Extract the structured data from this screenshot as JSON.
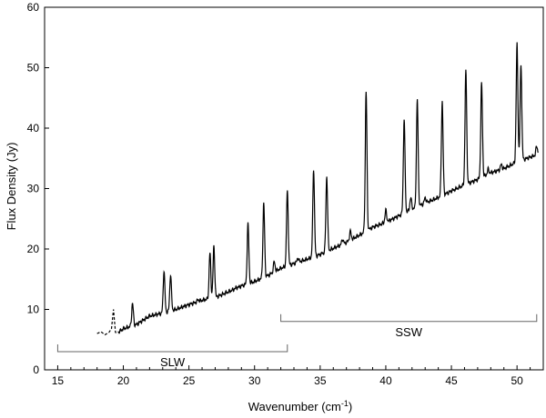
{
  "chart_data": {
    "type": "line",
    "xlabel": "Wavenumber",
    "xlabel_unit": "(cm",
    "xlabel_unit_sup": "-1",
    "xlabel_unit_close": ")",
    "ylabel": "Flux Density (Jy)",
    "xlim": [
      14,
      52
    ],
    "ylim": [
      0,
      60
    ],
    "x_ticks": [
      15,
      20,
      25,
      30,
      35,
      40,
      45,
      50
    ],
    "y_ticks": [
      0,
      10,
      20,
      30,
      40,
      50,
      60
    ],
    "grid": false,
    "legend": "none",
    "line_color": "#000000",
    "series": [
      {
        "style": "dashed",
        "points": [
          [
            18.0,
            6.0
          ],
          [
            18.3,
            6.3
          ],
          [
            18.6,
            5.8
          ],
          [
            18.9,
            6.2
          ],
          [
            19.1,
            6.8
          ],
          [
            19.25,
            10.0
          ],
          [
            19.4,
            6.2
          ],
          [
            19.6,
            6.0
          ]
        ]
      },
      {
        "style": "solid",
        "baseline": [
          [
            19.6,
            6.2
          ],
          [
            20.0,
            6.8
          ],
          [
            21.0,
            7.5
          ],
          [
            22.0,
            8.9
          ],
          [
            23.0,
            9.4
          ],
          [
            24.0,
            10.0
          ],
          [
            25.0,
            10.8
          ],
          [
            26.0,
            11.5
          ],
          [
            27.0,
            12.0
          ],
          [
            28.0,
            12.9
          ],
          [
            29.0,
            13.9
          ],
          [
            30.0,
            14.6
          ],
          [
            31.0,
            15.6
          ],
          [
            32.0,
            16.8
          ],
          [
            33.0,
            17.6
          ],
          [
            34.0,
            18.3
          ],
          [
            35.0,
            19.1
          ],
          [
            36.0,
            20.1
          ],
          [
            37.0,
            21.1
          ],
          [
            38.0,
            22.3
          ],
          [
            39.0,
            23.6
          ],
          [
            40.0,
            24.4
          ],
          [
            41.0,
            25.5
          ],
          [
            42.0,
            26.6
          ],
          [
            43.0,
            27.6
          ],
          [
            44.0,
            28.5
          ],
          [
            45.0,
            29.6
          ],
          [
            46.0,
            30.6
          ],
          [
            47.0,
            31.5
          ],
          [
            48.0,
            32.6
          ],
          [
            49.0,
            33.3
          ],
          [
            50.0,
            34.4
          ],
          [
            51.0,
            35.2
          ],
          [
            51.6,
            35.6
          ]
        ],
        "peaks": [
          [
            20.7,
            11.0
          ],
          [
            23.1,
            16.4
          ],
          [
            23.6,
            15.8
          ],
          [
            25.7,
            11.6
          ],
          [
            26.6,
            19.3
          ],
          [
            26.9,
            20.4
          ],
          [
            28.6,
            13.6
          ],
          [
            29.5,
            24.1
          ],
          [
            30.7,
            27.6
          ],
          [
            31.5,
            17.9
          ],
          [
            32.5,
            29.5
          ],
          [
            33.3,
            18.5
          ],
          [
            34.5,
            33.3
          ],
          [
            35.5,
            32.1
          ],
          [
            36.7,
            21.6
          ],
          [
            37.3,
            22.9
          ],
          [
            38.5,
            46.0
          ],
          [
            40.0,
            26.4
          ],
          [
            41.4,
            41.5
          ],
          [
            41.9,
            28.5
          ],
          [
            42.4,
            44.8
          ],
          [
            43.0,
            28.5
          ],
          [
            44.3,
            44.4
          ],
          [
            46.1,
            49.4
          ],
          [
            47.3,
            47.3
          ],
          [
            47.8,
            33.2
          ],
          [
            48.8,
            34.0
          ],
          [
            50.0,
            53.9
          ],
          [
            50.3,
            50.4
          ],
          [
            51.5,
            37.0
          ]
        ]
      }
    ],
    "bands": [
      {
        "label": "SLW",
        "x_range": [
          15,
          32.5
        ],
        "y_level": 3
      },
      {
        "label": "SSW",
        "x_range": [
          32,
          51.5
        ],
        "y_level": 8
      }
    ]
  }
}
